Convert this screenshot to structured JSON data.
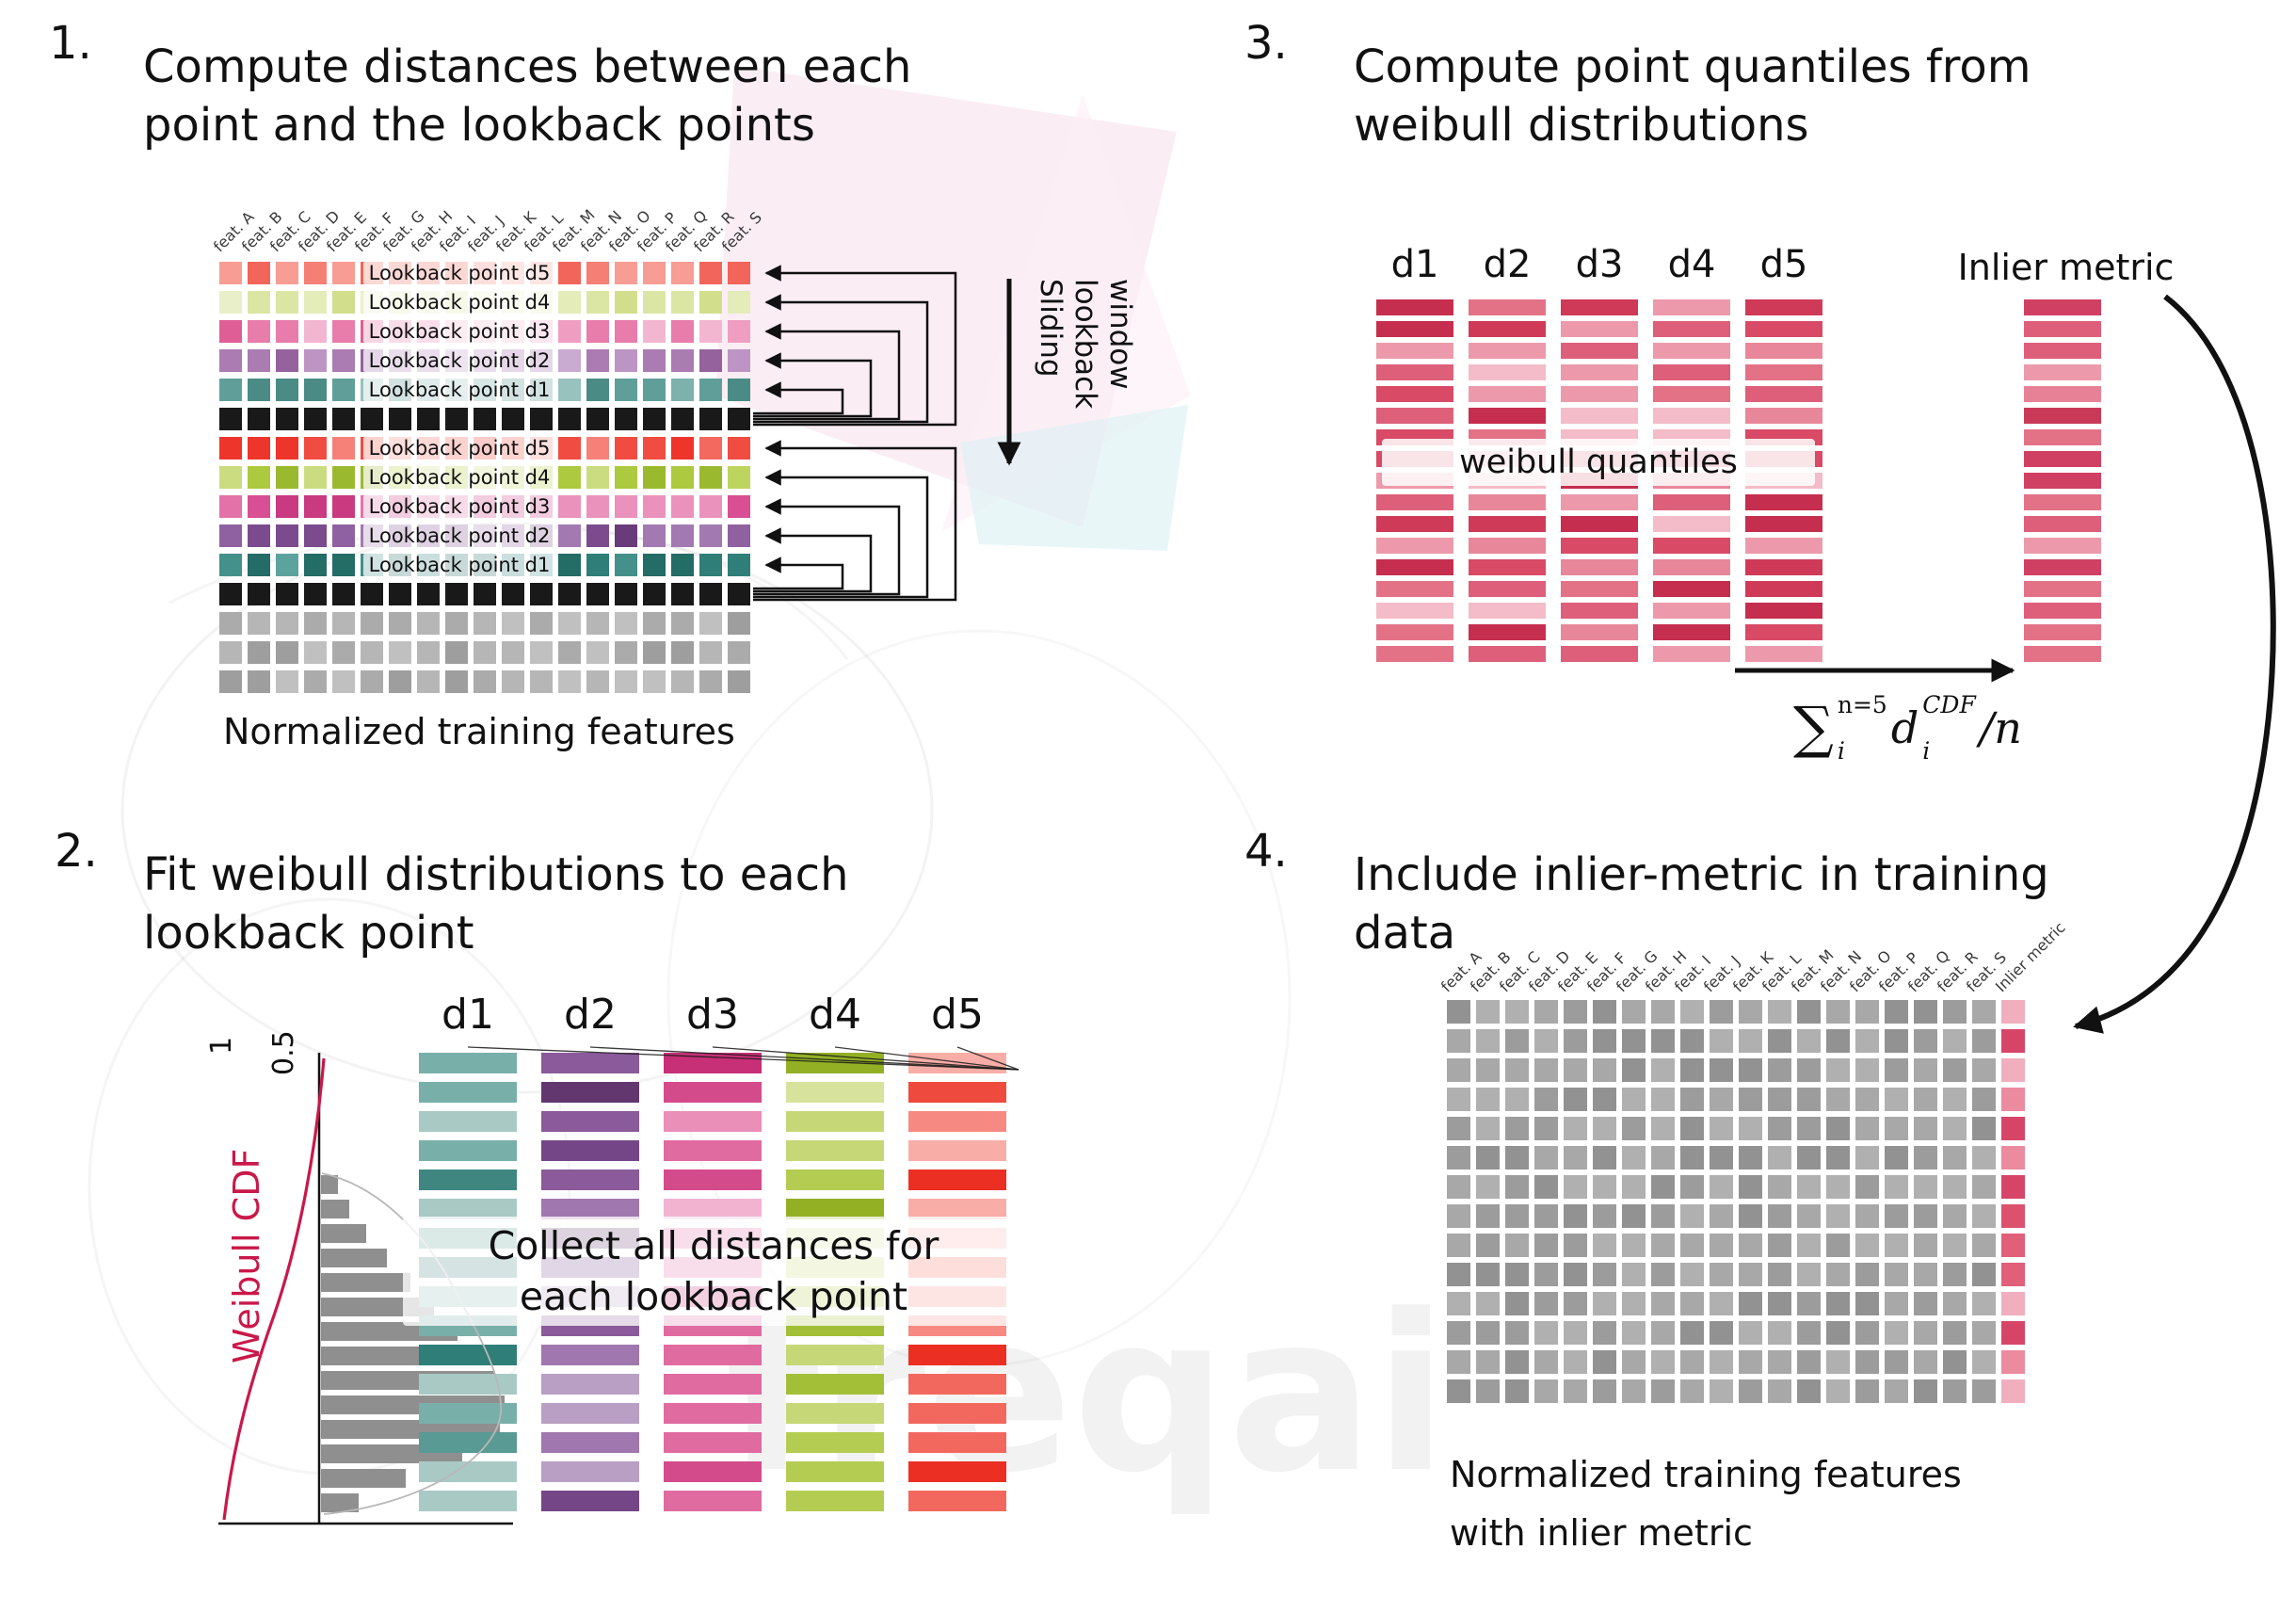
{
  "step1": {
    "num": "1.",
    "title": [
      "Compute distances between each",
      "point and the lookback points"
    ],
    "features": [
      "feat. A",
      "feat. B",
      "feat. C",
      "feat. D",
      "feat. E",
      "feat. F",
      "feat. G",
      "feat. H",
      "feat. I",
      "feat. J",
      "feat. K",
      "feat. L",
      "feat. M",
      "feat. N",
      "feat. O",
      "feat. P",
      "feat. Q",
      "feat. R",
      "feat. S"
    ],
    "groups": [
      {
        "rows": [
          {
            "label": "Lookback point d5",
            "palette": [
              "#f2655a",
              "#f2655a",
              "#f47f74",
              "#ee4d42",
              "#f79d94",
              "#f2655a"
            ]
          },
          {
            "label": "Lookback point d4",
            "palette": [
              "#dce6a4",
              "#dce6a4",
              "#e4ecba",
              "#d2de8c",
              "#e9efc8"
            ]
          },
          {
            "label": "Lookback point d3",
            "palette": [
              "#e87dab",
              "#e87dab",
              "#ef9ec2",
              "#df5e95",
              "#f3b6d0"
            ]
          },
          {
            "label": "Lookback point d2",
            "palette": [
              "#aa7cb2",
              "#aa7cb2",
              "#bc95c4",
              "#96629e",
              "#c9aad0"
            ]
          },
          {
            "label": "Lookback point d1",
            "palette": [
              "#609f99",
              "#609f99",
              "#7db1ab",
              "#4a8c85",
              "#97c2bd"
            ]
          }
        ]
      },
      {
        "rows": [
          {
            "label": "Lookback point d5",
            "palette": [
              "#f14c42",
              "#f14c42",
              "#f3695f",
              "#ee352b",
              "#f68179"
            ]
          },
          {
            "label": "Lookback point d4",
            "palette": [
              "#adc93f",
              "#adc93f",
              "#bdd45f",
              "#9bb92f",
              "#cbdc80"
            ]
          },
          {
            "label": "Lookback point d3",
            "palette": [
              "#d94f93",
              "#d94f93",
              "#e372a9",
              "#c93a81",
              "#ea92bc"
            ]
          },
          {
            "label": "Lookback point d2",
            "palette": [
              "#7c4b8d",
              "#7c4b8d",
              "#8f61a0",
              "#6a3b7b",
              "#a379b1"
            ]
          },
          {
            "label": "Lookback point d1",
            "palette": [
              "#2f7e78",
              "#2f7e78",
              "#44908a",
              "#246c66",
              "#5da39d"
            ]
          }
        ]
      }
    ],
    "current_point_color": "#191919",
    "gray_palette": [
      "#ababab",
      "#b6b6b6",
      "#9e9e9e",
      "#c0c0c0"
    ],
    "gray_rows": 3,
    "sliding_window_label": [
      "Sliding",
      "lookback",
      "window"
    ],
    "caption": "Normalized training features"
  },
  "step2": {
    "num": "2.",
    "title": [
      "Fit weibull distributions to each",
      "lookback point"
    ],
    "plot": {
      "ylabel": "Weibull CDF",
      "tick_labels": [
        "1",
        "0.5"
      ],
      "cdf_color": "#c9184a",
      "bar_color": "#8f8f8f",
      "bar_lengths": [
        18,
        30,
        48,
        70,
        95,
        120,
        145,
        168,
        185,
        195,
        190,
        150,
        90,
        40
      ]
    },
    "columns": [
      {
        "label": "d1",
        "palette": [
          "#5a9a94",
          "#79afa9",
          "#3f8680",
          "#a9c9c5",
          "#2f7e78",
          "#8fbcb7"
        ]
      },
      {
        "label": "d2",
        "palette": [
          "#8a5a9a",
          "#a077ae",
          "#744687",
          "#b99fc4",
          "#62376f",
          "#8a5a9a"
        ]
      },
      {
        "label": "d3",
        "palette": [
          "#e06ba0",
          "#ea8fb8",
          "#d44b8b",
          "#f2b3d0",
          "#c72f77",
          "#e06ba0"
        ]
      },
      {
        "label": "d4",
        "palette": [
          "#b5cc52",
          "#c6d777",
          "#a3bf38",
          "#d7e29c",
          "#93b025",
          "#b5cc52"
        ]
      },
      {
        "label": "d5",
        "palette": [
          "#f3685e",
          "#f68a82",
          "#ef4a3e",
          "#f9ada7",
          "#ec2f23",
          "#f3685e"
        ]
      }
    ],
    "bars_per_column": 16,
    "overlay": [
      "Collect all distances for",
      "each lookback point"
    ]
  },
  "step3": {
    "num": "3.",
    "title": [
      "Compute point quantiles from",
      "weibull distributions"
    ],
    "column_labels": [
      "d1",
      "d2",
      "d3",
      "d4",
      "d5"
    ],
    "quantile_palette": [
      "#d84a66",
      "#e37287",
      "#c52e4e",
      "#ec9aab",
      "#f3bcc8",
      "#dd5f7a",
      "#cf3a58",
      "#e88799"
    ],
    "bars_per_column": 17,
    "overlay": "weibull quantiles",
    "inlier_label": "Inlier metric",
    "inlier_palette": [
      "#dd5f7a",
      "#e37287",
      "#d04062",
      "#ec9aab",
      "#e78296",
      "#c93a58"
    ],
    "formula": {
      "sigma": "∑",
      "upper": "n=5",
      "lower": "i",
      "var": "d",
      "var_sup": "CDF",
      "var_sub": "i",
      "tail": "/n"
    }
  },
  "step4": {
    "num": "4.",
    "title": [
      "Include inlier-metric in training",
      "data"
    ],
    "features": [
      "feat. A",
      "feat. B",
      "feat. C",
      "feat. D",
      "feat. E",
      "feat. F",
      "feat. G",
      "feat. H",
      "feat. I",
      "feat. J",
      "feat. K",
      "feat. L",
      "feat. M",
      "feat. N",
      "feat. O",
      "feat. P",
      "feat. Q",
      "feat. R",
      "feat. S",
      "Inlier metric"
    ],
    "rows": 14,
    "gray_palette": [
      "#9c9c9c",
      "#a8a8a8",
      "#929292",
      "#b0b0b0"
    ],
    "inlier_palette": [
      "#e0607a",
      "#ea8ba0",
      "#d64568",
      "#f0aebe",
      "#db516e"
    ],
    "caption": [
      "Normalized training features",
      "with inlier metric"
    ]
  },
  "watermark": {
    "text": "freqai"
  }
}
